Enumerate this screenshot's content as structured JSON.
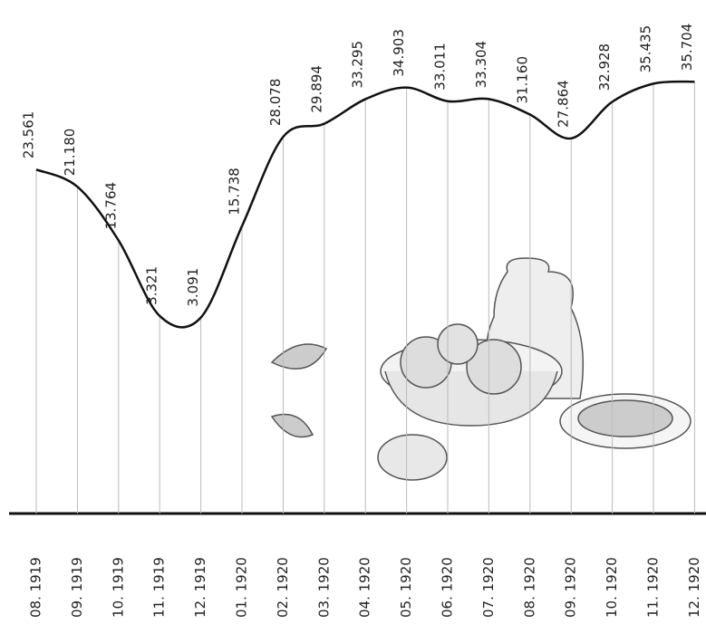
{
  "chart_data": {
    "type": "line",
    "categories": [
      "08. 1919",
      "09. 1919",
      "10. 1919",
      "11. 1919",
      "12. 1919",
      "01. 1920",
      "02. 1920",
      "03. 1920",
      "04. 1920",
      "05. 1920",
      "06. 1920",
      "07. 1920",
      "08. 1920",
      "09. 1920",
      "10. 1920",
      "11. 1920",
      "12. 1920"
    ],
    "values": [
      23.561,
      21.18,
      13.764,
      3.321,
      3.091,
      15.738,
      28.078,
      29.894,
      33.295,
      34.903,
      33.011,
      33.304,
      31.16,
      27.864,
      32.928,
      35.435,
      35.704
    ],
    "value_labels": [
      "23.561",
      "21.180",
      "13.764",
      "3.321",
      "3.091",
      "15.738",
      "28.078",
      "29.894",
      "33.295",
      "34.903",
      "33.011",
      "33.304",
      "31.160",
      "27.864",
      "32.928",
      "35.435",
      "35.704"
    ],
    "color": "#111111",
    "ylim": [
      -24,
      47
    ]
  }
}
